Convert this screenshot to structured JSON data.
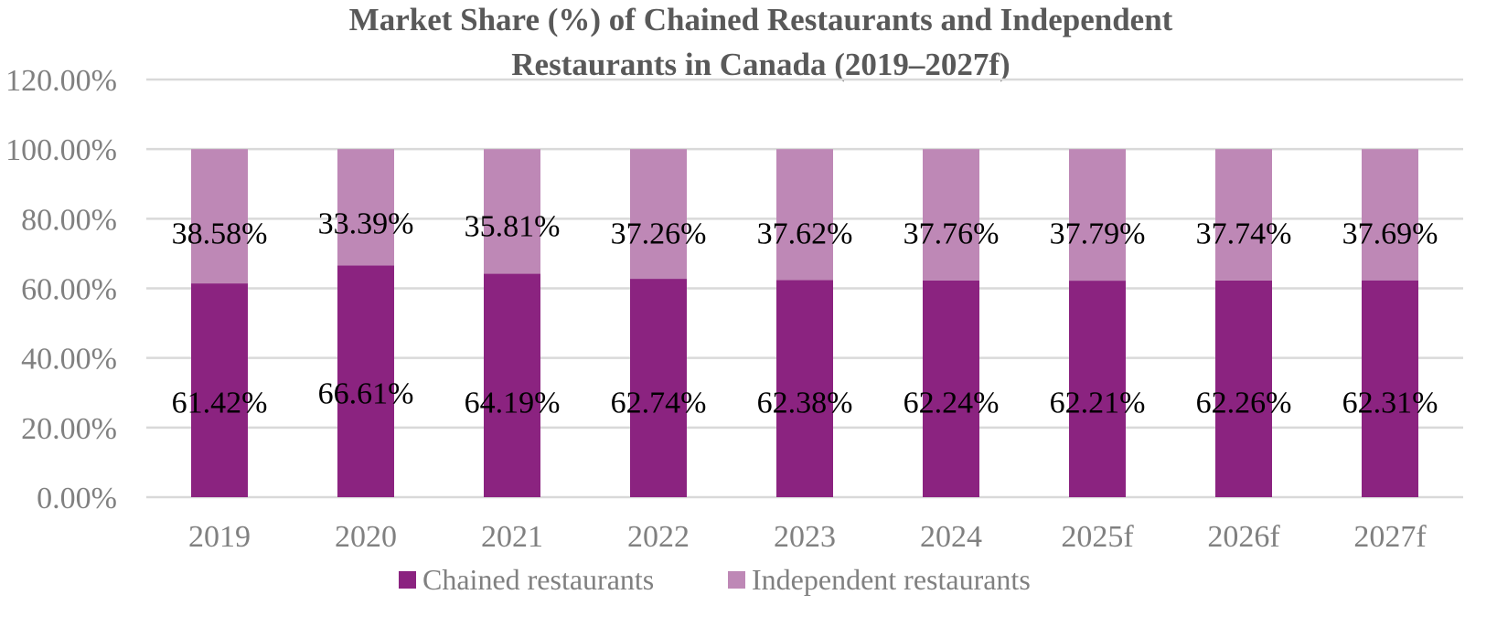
{
  "chart_data": {
    "type": "bar",
    "stacked": true,
    "title": "Market Share (%) of Chained Restaurants and Independent Restaurants in Canada (2019–2027f)",
    "title_lines": [
      "Market Share (%) of Chained Restaurants and Independent",
      "Restaurants in Canada (2019–2027f)"
    ],
    "xlabel": "",
    "ylabel": "",
    "categories": [
      "2019",
      "2020",
      "2021",
      "2022",
      "2023",
      "2024",
      "2025f",
      "2026f",
      "2027f"
    ],
    "series": [
      {
        "name": "Chained restaurants",
        "color": "#8b2380",
        "values": [
          61.42,
          66.61,
          64.19,
          62.74,
          62.38,
          62.24,
          62.21,
          62.26,
          62.31
        ],
        "labels": [
          "61.42%",
          "66.61%",
          "64.19%",
          "62.74%",
          "62.38%",
          "62.24%",
          "62.21%",
          "62.26%",
          "62.31%"
        ]
      },
      {
        "name": "Independent restaurants",
        "color": "#be88b6",
        "values": [
          38.58,
          33.39,
          35.81,
          37.26,
          37.62,
          37.76,
          37.79,
          37.74,
          37.69
        ],
        "labels": [
          "38.58%",
          "33.39%",
          "35.81%",
          "37.26%",
          "37.62%",
          "37.76%",
          "37.79%",
          "37.74%",
          "37.69%"
        ]
      }
    ],
    "ylim": [
      0,
      120
    ],
    "yticks": [
      0,
      20,
      40,
      60,
      80,
      100,
      120
    ],
    "ytick_labels": [
      "0.00%",
      "20.00%",
      "40.00%",
      "60.00%",
      "80.00%",
      "100.00%",
      "120.00%"
    ],
    "grid": true,
    "legend_position": "bottom"
  }
}
